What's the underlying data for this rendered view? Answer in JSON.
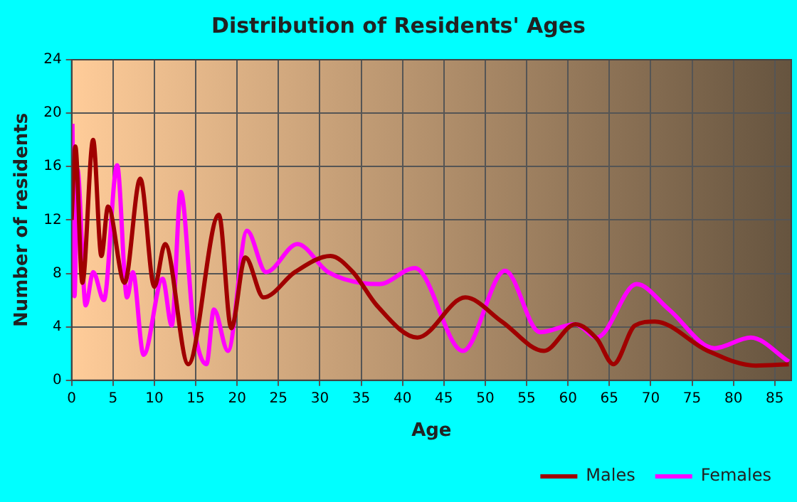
{
  "chart_data": {
    "type": "line",
    "title": "Distribution of Residents' Ages",
    "xlabel": "Age",
    "ylabel": "Number of residents",
    "xlim": [
      0,
      87
    ],
    "xticks": [
      0,
      5,
      10,
      15,
      20,
      25,
      30,
      35,
      40,
      45,
      50,
      55,
      60,
      65,
      70,
      75,
      80,
      85
    ],
    "ylim": [
      0,
      24
    ],
    "yticks": [
      0,
      4,
      8,
      12,
      16,
      20,
      24
    ],
    "grid": true,
    "legend": "bottom right",
    "marker": "none",
    "line_style": "solid",
    "series": [
      {
        "name": "Males",
        "color": "#a00000",
        "x": [
          0,
          0.45,
          1.3,
          2.6,
          3.6,
          4.4,
          6.4,
          8.3,
          10,
          11.3,
          14.1,
          17.8,
          19.3,
          21,
          23.2,
          27,
          31.3,
          34,
          36.9,
          41.8,
          47.6,
          52,
          57.1,
          60.9,
          63.5,
          65.5,
          68.1,
          70.5,
          76.9,
          82.7,
          86.7
        ],
        "values": [
          12,
          17.5,
          7.3,
          18,
          9.3,
          13,
          7.3,
          15.1,
          7,
          10.2,
          1.2,
          12.4,
          3.9,
          9.2,
          6.2,
          8.1,
          9.3,
          8.1,
          5.6,
          3.2,
          6.2,
          4.4,
          2.2,
          4.2,
          3.1,
          1.2,
          4.1,
          4.4,
          2.2,
          1.1,
          1.2
        ]
      },
      {
        "name": "Females",
        "color": "#ff00ff",
        "x": [
          0.1,
          0.35,
          0.7,
          1.7,
          2.6,
          3.9,
          5.5,
          6.7,
          7.4,
          8.7,
          11,
          12.1,
          13.2,
          14.7,
          16.3,
          17.2,
          18.9,
          21.2,
          23.5,
          27.3,
          31,
          37.2,
          41.5,
          47.3,
          52.4,
          56.6,
          60.9,
          63.5,
          68.3,
          72.2,
          77.7,
          82.1,
          86.7
        ],
        "values": [
          19.2,
          6.3,
          15.8,
          5.6,
          8.1,
          6,
          16.1,
          6.2,
          8.1,
          1.9,
          7.6,
          4.1,
          14.1,
          4.4,
          1.2,
          5.3,
          2.2,
          11.2,
          8.1,
          10.2,
          8.1,
          7.2,
          8.4,
          2.2,
          8.2,
          3.6,
          4.2,
          3.2,
          7.2,
          5.3,
          2.4,
          3.2,
          1.4
        ]
      }
    ]
  }
}
